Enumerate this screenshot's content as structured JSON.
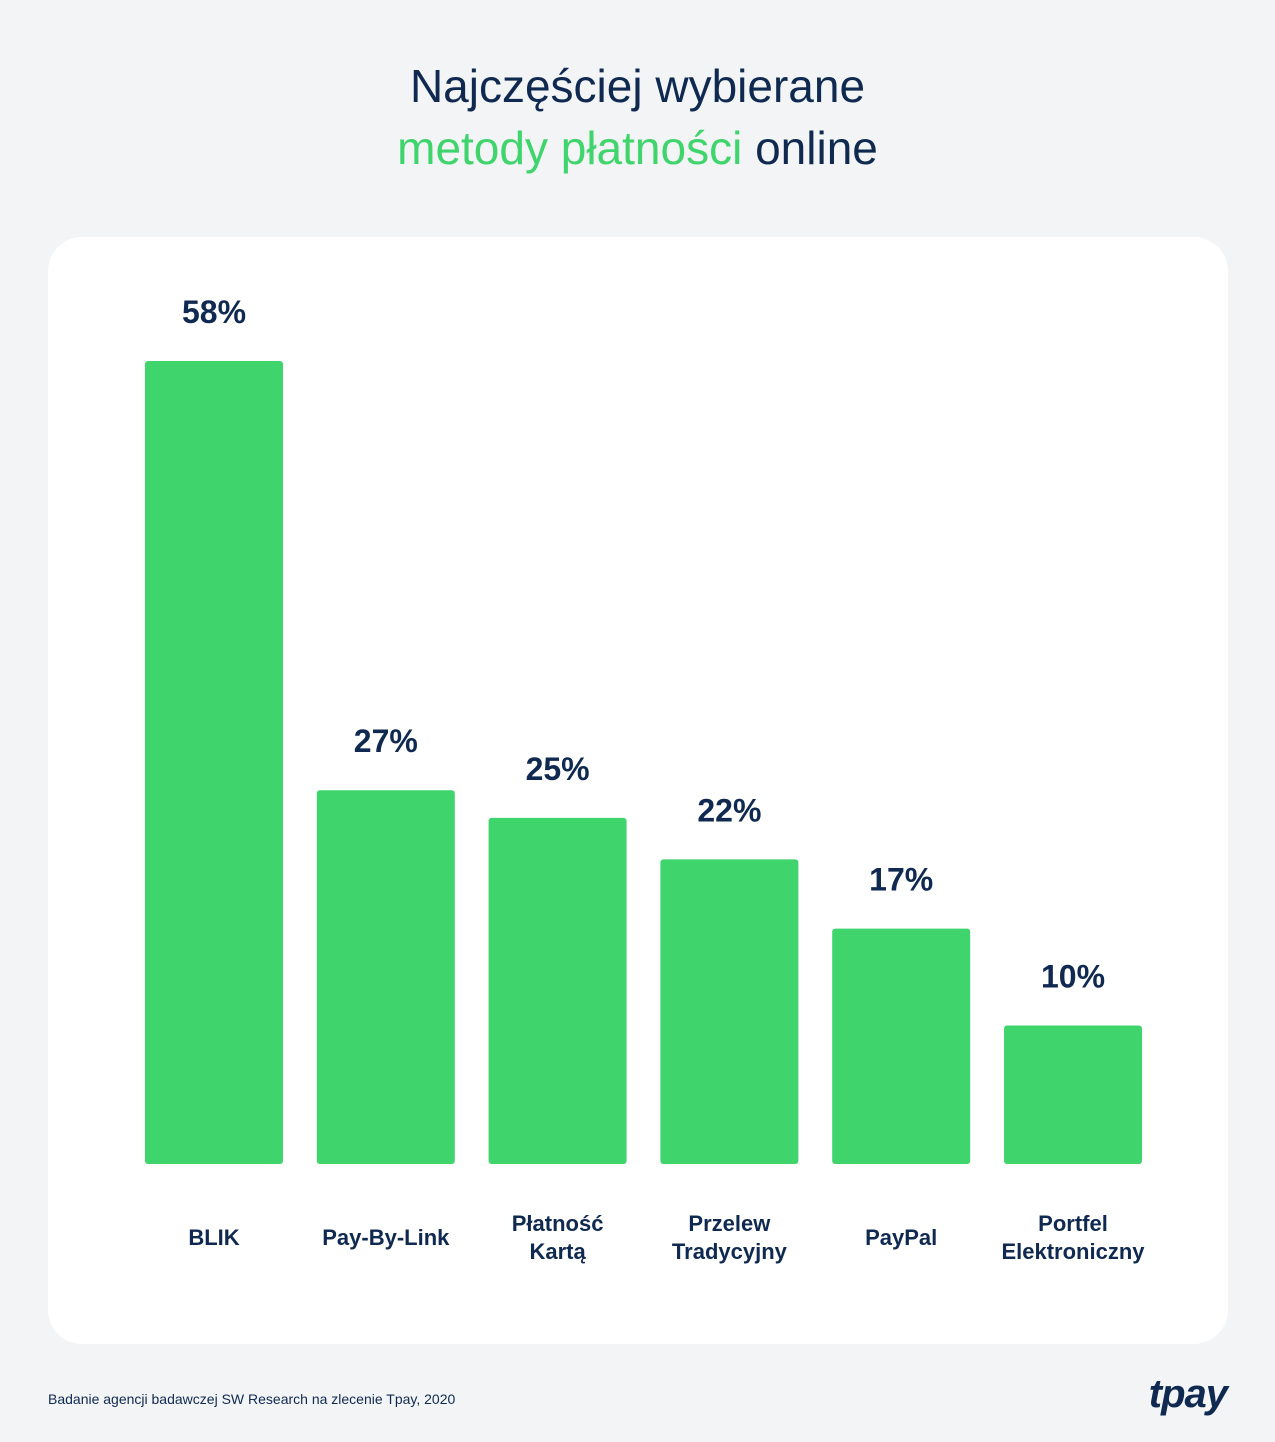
{
  "header": {
    "title_line1": "Najczęściej wybierane",
    "title_line2_accent": "metody płatności",
    "title_line2_rest": "online"
  },
  "colors": {
    "bar": "#3fd46c",
    "text": "#0f2950",
    "accent": "#3fd46c"
  },
  "footer": {
    "source": "Badanie agencji badawczej SW Research na zlecenie Tpay, 2020",
    "logo": "tpay"
  },
  "chart_data": {
    "type": "bar",
    "title": "Najczęściej wybierane metody płatności online",
    "categories": [
      [
        "BLIK"
      ],
      [
        "Pay-By-Link"
      ],
      [
        "Płatność",
        "Kartą"
      ],
      [
        "Przelew",
        "Tradycyjny"
      ],
      [
        "PayPal"
      ],
      [
        "Portfel",
        "Elektroniczny"
      ]
    ],
    "values": [
      58,
      27,
      25,
      22,
      17,
      10
    ],
    "value_labels": [
      "58%",
      "27%",
      "25%",
      "22%",
      "17%",
      "10%"
    ],
    "unit": "%",
    "ylim": [
      0,
      58
    ],
    "grid": false,
    "legend": "none"
  }
}
